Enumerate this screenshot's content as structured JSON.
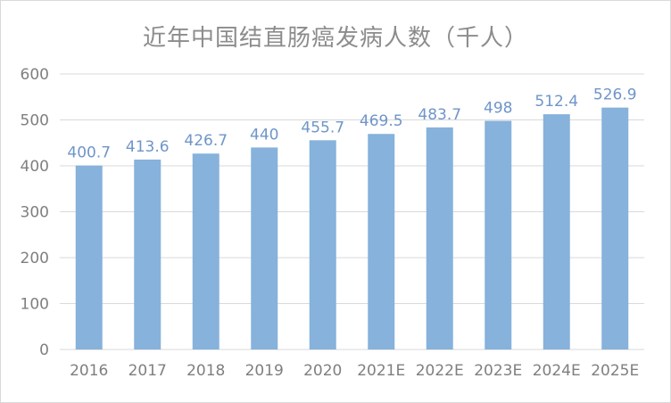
{
  "chart_data": {
    "type": "bar",
    "title": "近年中国结直肠癌发病人数（千人）",
    "categories": [
      "2016",
      "2017",
      "2018",
      "2019",
      "2020",
      "2021E",
      "2022E",
      "2023E",
      "2024E",
      "2025E"
    ],
    "values": [
      400.7,
      413.6,
      426.7,
      440,
      455.7,
      469.5,
      483.7,
      498,
      512.4,
      526.9
    ],
    "data_labels": [
      "400.7",
      "413.6",
      "426.7",
      "440",
      "455.7",
      "469.5",
      "483.7",
      "498",
      "512.4",
      "526.9"
    ],
    "y_ticks": [
      "0",
      "100",
      "200",
      "300",
      "400",
      "500",
      "600"
    ],
    "ylim": [
      0,
      600
    ],
    "xlabel": "",
    "ylabel": "",
    "grid": true,
    "legend": "none",
    "bar_color": "#86b2dc",
    "label_color": "#6f95c9"
  }
}
